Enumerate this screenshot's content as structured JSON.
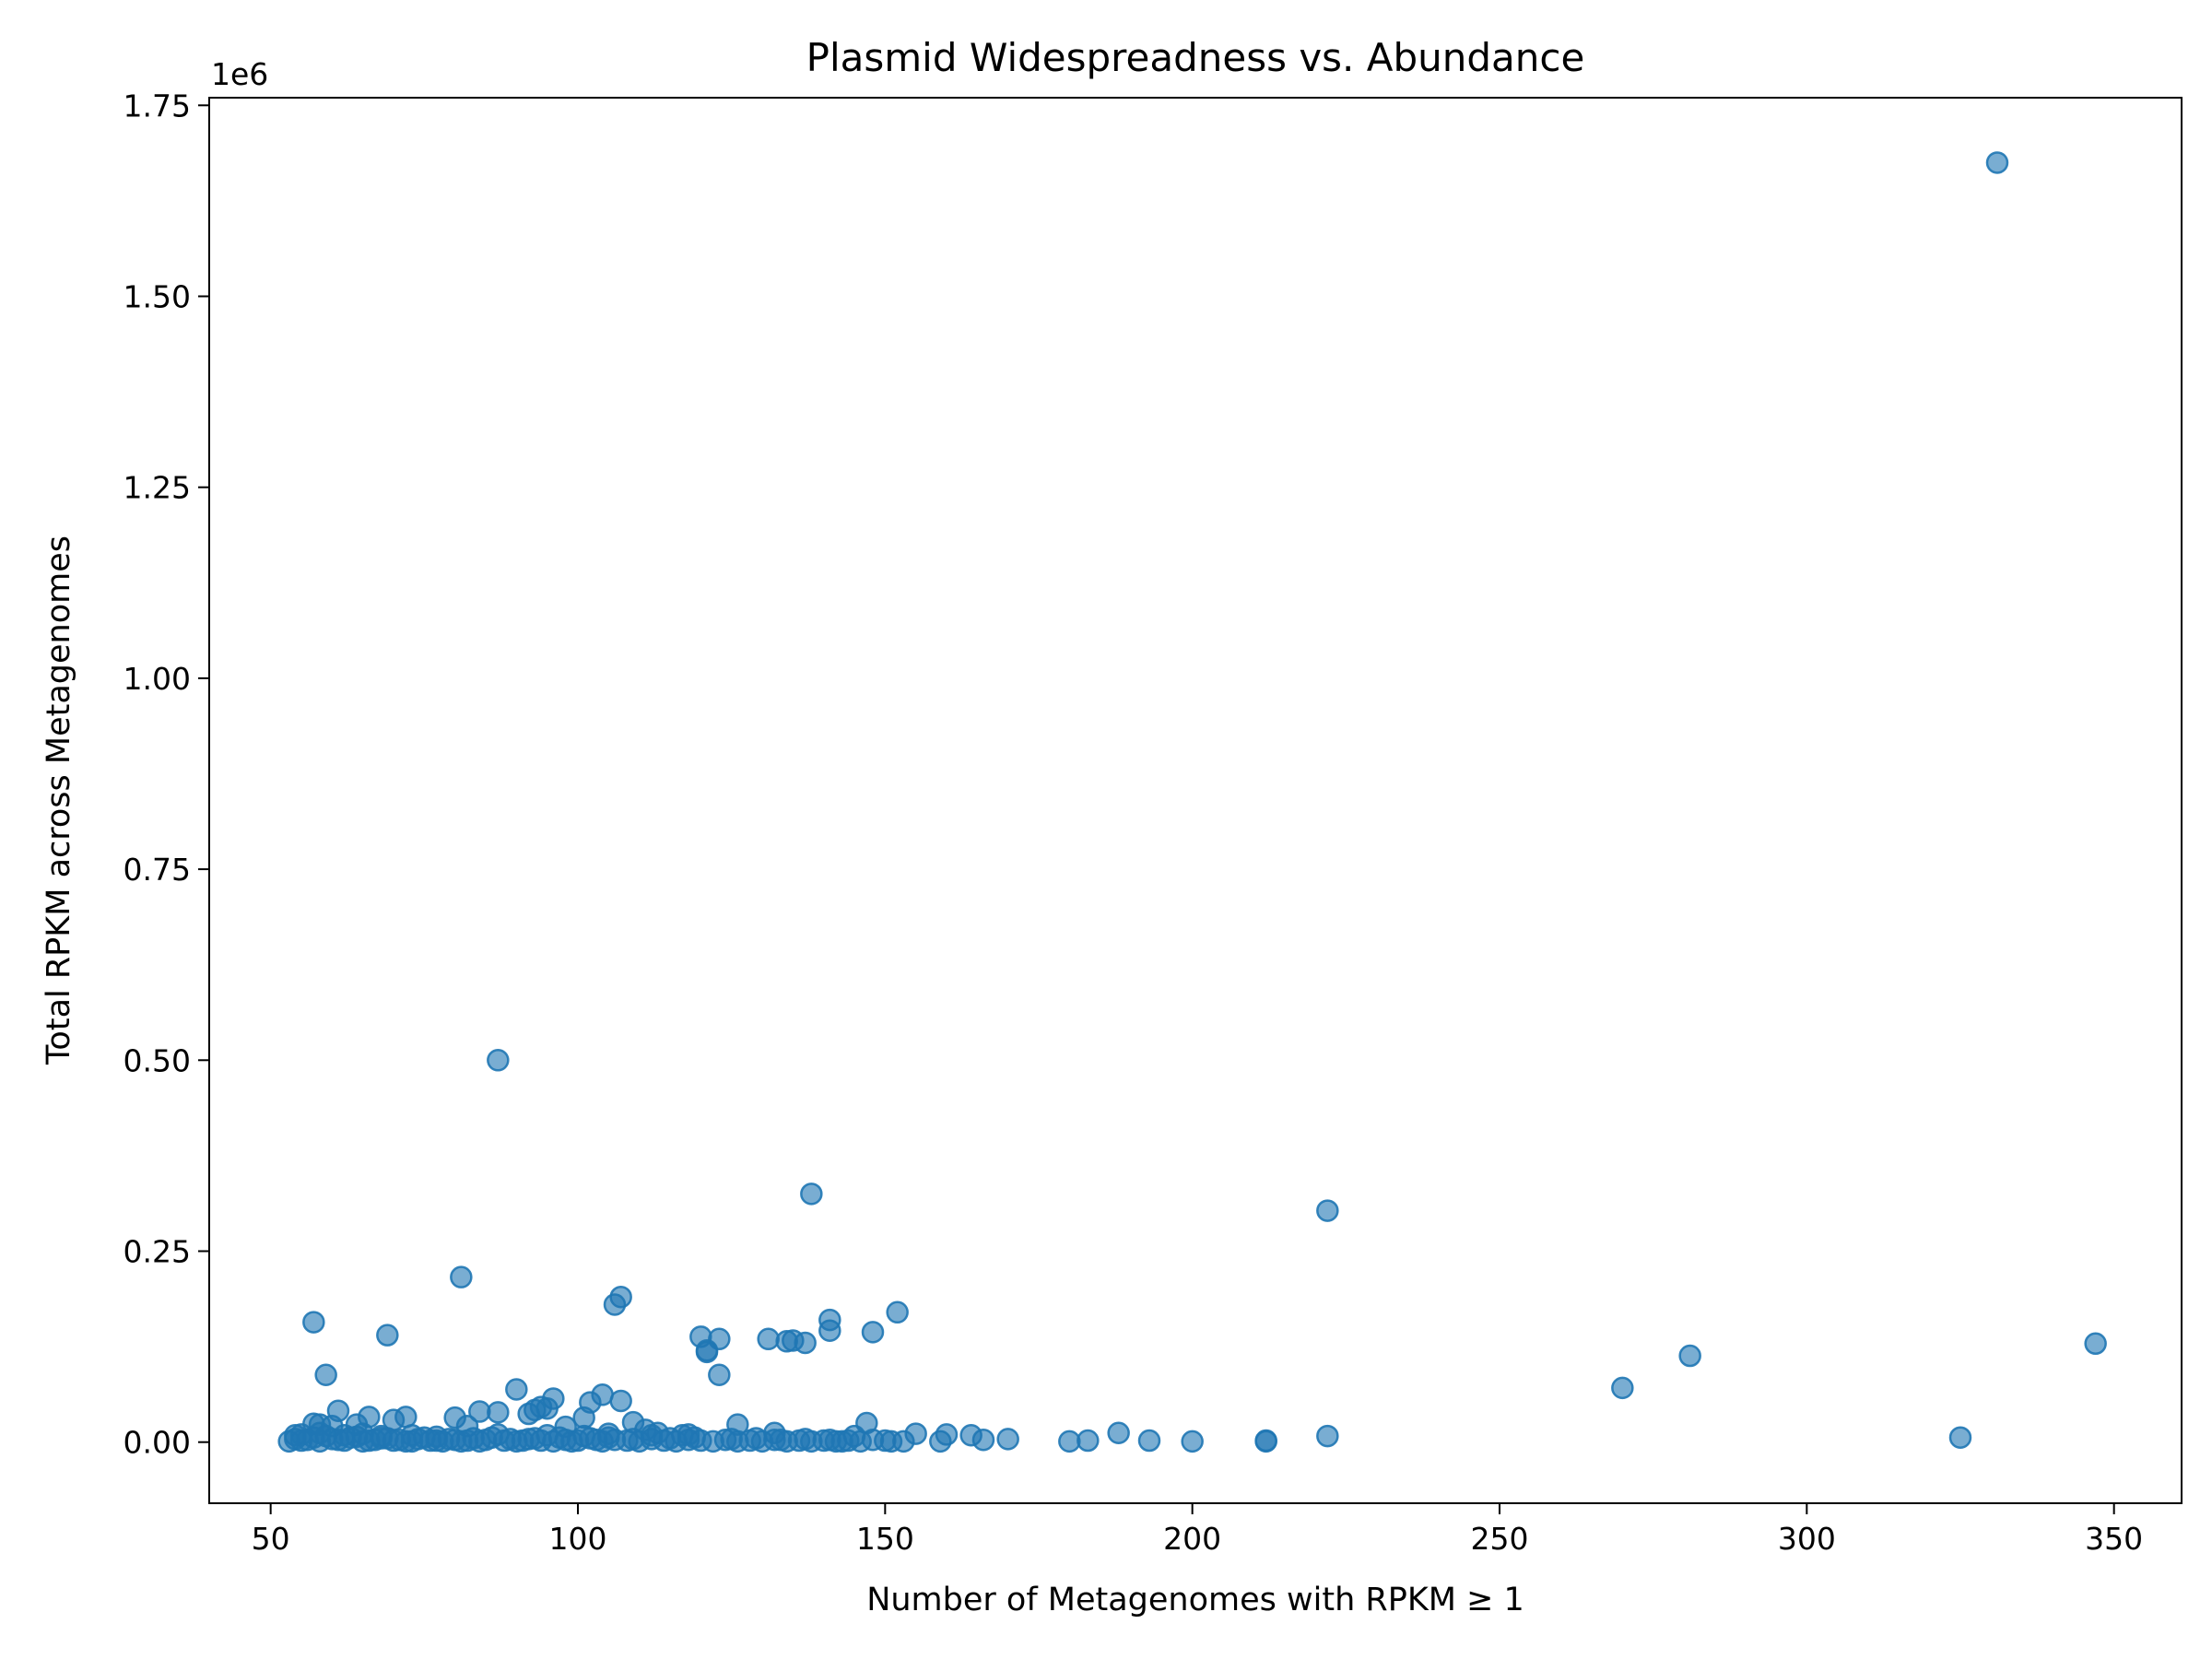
{
  "chart_data": {
    "type": "scatter",
    "title": "Plasmid Widespreadness vs. Abundance",
    "xlabel": "Number of Metagenomes with RPKM ≥ 1",
    "ylabel": "Total RPKM across Metagenomes",
    "y_offset_label": "1e6",
    "xlim": [
      40,
      361
    ],
    "ylim": [
      -80000,
      1760000
    ],
    "xticks": [
      50,
      100,
      150,
      200,
      250,
      300,
      350
    ],
    "xtick_labels": [
      "50",
      "100",
      "150",
      "200",
      "250",
      "300",
      "350"
    ],
    "yticks": [
      0,
      250000,
      500000,
      750000,
      1000000,
      1250000,
      1500000,
      1750000
    ],
    "ytick_labels": [
      "0.00",
      "0.25",
      "0.50",
      "0.75",
      "1.00",
      "1.25",
      "1.50",
      "1.75"
    ],
    "grid": false,
    "marker_color": "#1f77b4",
    "series": [
      {
        "points": [
          [
            331,
            1675000
          ],
          [
            87,
            500000
          ],
          [
            138,
            325000
          ],
          [
            222,
            303000
          ],
          [
            81,
            216000
          ],
          [
            107,
            190000
          ],
          [
            106,
            180000
          ],
          [
            152,
            170000
          ],
          [
            141,
            160000
          ],
          [
            57,
            157000
          ],
          [
            141,
            146000
          ],
          [
            148,
            144000
          ],
          [
            69,
            140000
          ],
          [
            120,
            138000
          ],
          [
            123,
            135000
          ],
          [
            131,
            135000
          ],
          [
            135,
            133000
          ],
          [
            134,
            132000
          ],
          [
            137,
            130000
          ],
          [
            347,
            129000
          ],
          [
            121,
            120000
          ],
          [
            121,
            118000
          ],
          [
            281,
            113000
          ],
          [
            59,
            88000
          ],
          [
            123,
            88000
          ],
          [
            270,
            71000
          ],
          [
            90,
            69000
          ],
          [
            104,
            62000
          ],
          [
            96,
            57000
          ],
          [
            107,
            54000
          ],
          [
            102,
            52000
          ],
          [
            94,
            46000
          ],
          [
            95,
            44000
          ],
          [
            93,
            42000
          ],
          [
            61,
            41000
          ],
          [
            84,
            40000
          ],
          [
            87,
            39000
          ],
          [
            92,
            37000
          ],
          [
            66,
            33000
          ],
          [
            72,
            33000
          ],
          [
            80,
            32000
          ],
          [
            101,
            32000
          ],
          [
            70,
            29000
          ],
          [
            109,
            26000
          ],
          [
            147,
            25000
          ],
          [
            57,
            24000
          ],
          [
            58,
            23000
          ],
          [
            64,
            23000
          ],
          [
            126,
            23000
          ],
          [
            82,
            21000
          ],
          [
            60,
            21000
          ],
          [
            98,
            20000
          ],
          [
            111,
            16000
          ],
          [
            113,
            12000
          ],
          [
            132,
            12000
          ],
          [
            188,
            12000
          ],
          [
            155,
            11000
          ],
          [
            160,
            10000
          ],
          [
            54,
            9000
          ],
          [
            164,
            9000
          ],
          [
            117,
            9000
          ],
          [
            145,
            8000
          ],
          [
            222,
            8000
          ],
          [
            325,
            6000
          ],
          [
            170,
            4000
          ],
          [
            166,
            3000
          ],
          [
            183,
            2000
          ],
          [
            193,
            2000
          ],
          [
            180,
            1000
          ],
          [
            200,
            1000
          ],
          [
            212,
            2000
          ],
          [
            212,
            1000
          ],
          [
            159,
            1000
          ],
          [
            150,
            2000
          ],
          [
            153,
            1000
          ],
          [
            53,
            1000
          ],
          [
            55,
            2000
          ],
          [
            56,
            3000
          ],
          [
            58,
            1000
          ],
          [
            60,
            4000
          ],
          [
            62,
            2000
          ],
          [
            63,
            6000
          ],
          [
            65,
            1000
          ],
          [
            67,
            3000
          ],
          [
            68,
            5000
          ],
          [
            70,
            2000
          ],
          [
            72,
            1000
          ],
          [
            74,
            4000
          ],
          [
            76,
            2000
          ],
          [
            78,
            1000
          ],
          [
            80,
            3000
          ],
          [
            82,
            2000
          ],
          [
            84,
            1000
          ],
          [
            86,
            6000
          ],
          [
            88,
            2000
          ],
          [
            90,
            1000
          ],
          [
            92,
            4000
          ],
          [
            94,
            2000
          ],
          [
            96,
            1000
          ],
          [
            98,
            3000
          ],
          [
            100,
            2000
          ],
          [
            102,
            5000
          ],
          [
            104,
            1000
          ],
          [
            106,
            3000
          ],
          [
            108,
            2000
          ],
          [
            110,
            1000
          ],
          [
            112,
            4000
          ],
          [
            114,
            2000
          ],
          [
            116,
            1000
          ],
          [
            118,
            3000
          ],
          [
            120,
            2000
          ],
          [
            122,
            1000
          ],
          [
            124,
            3000
          ],
          [
            126,
            1000
          ],
          [
            128,
            2000
          ],
          [
            130,
            1000
          ],
          [
            132,
            3000
          ],
          [
            134,
            1000
          ],
          [
            136,
            2000
          ],
          [
            138,
            1000
          ],
          [
            140,
            2000
          ],
          [
            142,
            1000
          ],
          [
            144,
            2000
          ],
          [
            146,
            1000
          ],
          [
            148,
            3000
          ],
          [
            151,
            1000
          ],
          [
            54,
            4000
          ],
          [
            57,
            6000
          ],
          [
            59,
            8000
          ],
          [
            61,
            3000
          ],
          [
            64,
            7000
          ],
          [
            66,
            2000
          ],
          [
            69,
            5000
          ],
          [
            71,
            3000
          ],
          [
            73,
            1000
          ],
          [
            75,
            6000
          ],
          [
            77,
            2000
          ],
          [
            79,
            4000
          ],
          [
            81,
            1000
          ],
          [
            83,
            5000
          ],
          [
            85,
            3000
          ],
          [
            89,
            4000
          ],
          [
            91,
            2000
          ],
          [
            93,
            5000
          ],
          [
            97,
            6000
          ],
          [
            99,
            1000
          ],
          [
            103,
            3000
          ],
          [
            105,
            6000
          ],
          [
            109,
            4000
          ],
          [
            115,
            5000
          ],
          [
            119,
            6000
          ],
          [
            125,
            4000
          ],
          [
            129,
            5000
          ],
          [
            133,
            3000
          ],
          [
            137,
            4000
          ],
          [
            141,
            3000
          ],
          [
            143,
            1000
          ],
          [
            55,
            10000
          ],
          [
            58,
            12000
          ],
          [
            62,
            9000
          ],
          [
            65,
            11000
          ],
          [
            68,
            8000
          ],
          [
            73,
            9000
          ],
          [
            77,
            7000
          ],
          [
            87,
            10000
          ],
          [
            95,
            9000
          ],
          [
            101,
            8000
          ],
          [
            105,
            11000
          ],
          [
            112,
            9000
          ],
          [
            118,
            10000
          ]
        ]
      }
    ]
  }
}
